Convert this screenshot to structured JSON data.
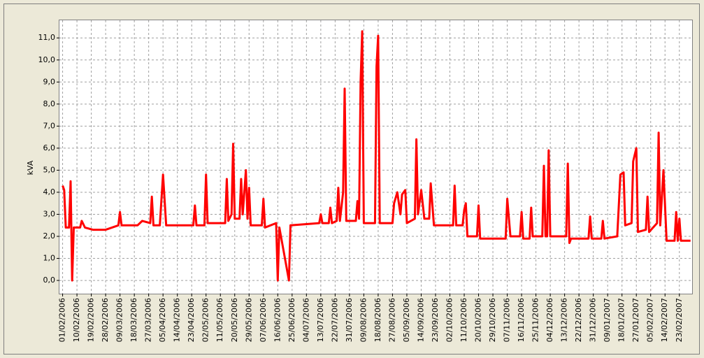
{
  "chart_data": {
    "type": "line",
    "y_label": "kVA",
    "color": "#ff0000",
    "grid": true,
    "x": [
      "01/02/2006",
      "02/02/2006",
      "03/02/2006",
      "05/02/2006",
      "06/02/2006",
      "07/02/2006",
      "08/02/2006",
      "12/02/2006",
      "13/02/2006",
      "15/02/2006",
      "20/02/2006",
      "28/02/2006",
      "04/03/2006",
      "08/03/2006",
      "09/03/2006",
      "10/03/2006",
      "20/03/2006",
      "23/03/2006",
      "28/03/2006",
      "29/03/2006",
      "30/03/2006",
      "03/04/2006",
      "05/04/2006",
      "07/04/2006",
      "24/04/2006",
      "25/04/2006",
      "26/04/2006",
      "01/05/2006",
      "02/05/2006",
      "03/05/2006",
      "14/05/2006",
      "15/05/2006",
      "16/05/2006",
      "18/05/2006",
      "19/05/2006",
      "20/05/2006",
      "23/05/2006",
      "24/05/2006",
      "25/05/2006",
      "27/05/2006",
      "28/05/2006",
      "29/05/2006",
      "30/05/2006",
      "06/06/2006",
      "07/06/2006",
      "08/06/2006",
      "15/06/2006",
      "16/06/2006",
      "17/06/2006",
      "23/06/2006",
      "24/06/2006",
      "12/07/2006",
      "13/07/2006",
      "14/07/2006",
      "18/07/2006",
      "19/07/2006",
      "20/07/2006",
      "23/07/2006",
      "24/07/2006",
      "25/07/2006",
      "27/07/2006",
      "28/07/2006",
      "29/07/2006",
      "04/08/2006",
      "05/08/2006",
      "06/08/2006",
      "07/08/2006",
      "08/08/2006",
      "09/08/2006",
      "16/08/2006",
      "17/08/2006",
      "18/08/2006",
      "19/08/2006",
      "27/08/2006",
      "28/08/2006",
      "30/08/2006",
      "01/09/2006",
      "02/09/2006",
      "04/09/2006",
      "05/09/2006",
      "10/09/2006",
      "11/09/2006",
      "12/09/2006",
      "14/09/2006",
      "16/09/2006",
      "19/09/2006",
      "20/09/2006",
      "22/09/2006",
      "04/10/2006",
      "05/10/2006",
      "06/10/2006",
      "10/10/2006",
      "11/10/2006",
      "12/10/2006",
      "13/10/2006",
      "19/10/2006",
      "20/10/2006",
      "21/10/2006",
      "06/11/2006",
      "07/11/2006",
      "09/11/2006",
      "15/11/2006",
      "16/11/2006",
      "17/11/2006",
      "21/11/2006",
      "22/11/2006",
      "23/11/2006",
      "29/11/2006",
      "30/11/2006",
      "01/12/2006",
      "02/12/2006",
      "03/12/2006",
      "04/12/2006",
      "14/12/2006",
      "15/12/2006",
      "16/12/2006",
      "17/12/2006",
      "28/12/2006",
      "29/12/2006",
      "30/12/2006",
      "05/01/2007",
      "06/01/2007",
      "07/01/2007",
      "15/01/2007",
      "17/01/2007",
      "19/01/2007",
      "20/01/2007",
      "24/01/2007",
      "25/01/2007",
      "27/01/2007",
      "28/01/2007",
      "02/02/2007",
      "03/02/2007",
      "04/02/2007",
      "09/02/2007",
      "10/02/2007",
      "11/02/2007",
      "13/02/2007",
      "15/02/2007",
      "20/02/2007",
      "21/02/2007",
      "22/02/2007",
      "23/02/2007",
      "24/02/2007",
      "02/03/2007"
    ],
    "values": [
      4.3,
      4.1,
      2.4,
      2.4,
      4.5,
      0.0,
      2.4,
      2.4,
      2.7,
      2.4,
      2.3,
      2.3,
      2.4,
      2.5,
      3.1,
      2.5,
      2.5,
      2.7,
      2.6,
      3.8,
      2.5,
      2.5,
      4.8,
      2.5,
      2.5,
      3.4,
      2.5,
      2.5,
      4.8,
      2.6,
      2.6,
      4.6,
      2.7,
      3.0,
      6.2,
      2.8,
      2.8,
      4.6,
      3.0,
      5.0,
      2.8,
      4.2,
      2.5,
      2.5,
      3.7,
      2.4,
      2.6,
      0.0,
      2.4,
      0.0,
      2.5,
      2.6,
      3.0,
      2.6,
      2.6,
      3.3,
      2.6,
      2.7,
      4.2,
      2.7,
      4.0,
      8.7,
      2.7,
      2.7,
      3.6,
      2.8,
      9.0,
      11.3,
      2.6,
      2.6,
      9.7,
      11.1,
      2.6,
      2.6,
      3.5,
      4.0,
      3.0,
      3.9,
      4.1,
      2.6,
      2.8,
      6.4,
      3.0,
      4.1,
      2.8,
      2.8,
      4.4,
      2.5,
      2.5,
      4.3,
      2.5,
      2.5,
      3.2,
      3.5,
      2.0,
      2.0,
      3.4,
      1.9,
      1.9,
      3.7,
      2.0,
      2.0,
      3.1,
      1.9,
      1.9,
      3.3,
      2.0,
      2.0,
      5.2,
      2.0,
      2.0,
      5.9,
      2.0,
      2.0,
      5.3,
      1.7,
      1.9,
      1.9,
      2.9,
      1.9,
      1.9,
      2.7,
      1.9,
      2.0,
      4.8,
      4.9,
      2.5,
      2.6,
      5.4,
      6.0,
      2.2,
      2.3,
      3.8,
      2.2,
      2.6,
      6.7,
      2.5,
      5.0,
      1.8,
      1.8,
      3.1,
      1.8,
      2.8,
      1.8,
      1.8
    ],
    "xlim": [
      "30/01/2006",
      "03/03/2007"
    ],
    "xticks": [
      "01/02/2006",
      "10/02/2006",
      "19/02/2006",
      "28/02/2006",
      "09/03/2006",
      "18/03/2006",
      "27/03/2006",
      "05/04/2006",
      "14/04/2006",
      "23/04/2006",
      "02/05/2006",
      "11/05/2006",
      "20/05/2006",
      "29/05/2006",
      "07/06/2006",
      "16/06/2006",
      "25/06/2006",
      "04/07/2006",
      "13/07/2006",
      "22/07/2006",
      "31/07/2006",
      "09/08/2006",
      "18/08/2006",
      "27/08/2006",
      "05/09/2006",
      "14/09/2006",
      "23/09/2006",
      "02/10/2006",
      "11/10/2006",
      "20/10/2006",
      "29/10/2006",
      "07/11/2006",
      "16/11/2006",
      "25/11/2006",
      "04/12/2006",
      "13/12/2006",
      "22/12/2006",
      "31/12/2006",
      "09/01/2007",
      "18/01/2007",
      "27/01/2007",
      "05/02/2007",
      "14/02/2007",
      "23/02/2007"
    ],
    "ylim": [
      -0.6,
      11.8
    ],
    "yticks": [
      {
        "value": 0,
        "label": "0,0"
      },
      {
        "value": 1,
        "label": "1,0"
      },
      {
        "value": 2,
        "label": "2,0"
      },
      {
        "value": 3,
        "label": "3,0"
      },
      {
        "value": 4,
        "label": "4,0"
      },
      {
        "value": 5,
        "label": "5,0"
      },
      {
        "value": 6,
        "label": "6,0"
      },
      {
        "value": 7,
        "label": "7,0"
      },
      {
        "value": 8,
        "label": "8,0"
      },
      {
        "value": 9,
        "label": "9,0"
      },
      {
        "value": 10,
        "label": "10,0"
      },
      {
        "value": 11,
        "label": "11,0"
      }
    ]
  }
}
